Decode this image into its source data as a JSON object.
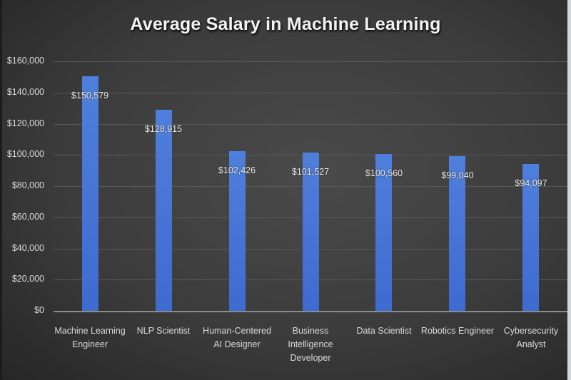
{
  "chart_data": {
    "type": "bar",
    "title": "Average Salary in Machine Learning",
    "xlabel": "",
    "ylabel": "",
    "categories": [
      "Machine Learning Engineer",
      "NLP Scientist",
      "Human-Centered AI Designer",
      "Business Intelligence Developer",
      "Data Scientist",
      "Robotics Engineer",
      "Cybersecurity Analyst"
    ],
    "category_lines": [
      [
        "Machine Learning",
        "Engineer"
      ],
      [
        "NLP Scientist"
      ],
      [
        "Human-Centered",
        "AI Designer"
      ],
      [
        "Business",
        "Intelligence",
        "Developer"
      ],
      [
        "Data Scientist"
      ],
      [
        "Robotics Engineer"
      ],
      [
        "Cybersecurity",
        "Analyst"
      ]
    ],
    "values": [
      150579,
      128915,
      102426,
      101527,
      100560,
      99040,
      94097
    ],
    "data_labels": [
      "$150,579",
      "$128,915",
      "$102,426",
      "$101,527",
      "$100,560",
      "$99,040",
      "$94,097"
    ],
    "ylim": [
      0,
      160000
    ],
    "yticks": [
      0,
      20000,
      40000,
      60000,
      80000,
      100000,
      120000,
      140000,
      160000
    ],
    "ytick_labels": [
      "$0",
      "$20,000",
      "$40,000",
      "$60,000",
      "$80,000",
      "$100,000",
      "$120,000",
      "$140,000",
      "$160,000"
    ],
    "grid": true,
    "legend": null,
    "bar_color": "#4472C4",
    "background_color": "#404040"
  }
}
